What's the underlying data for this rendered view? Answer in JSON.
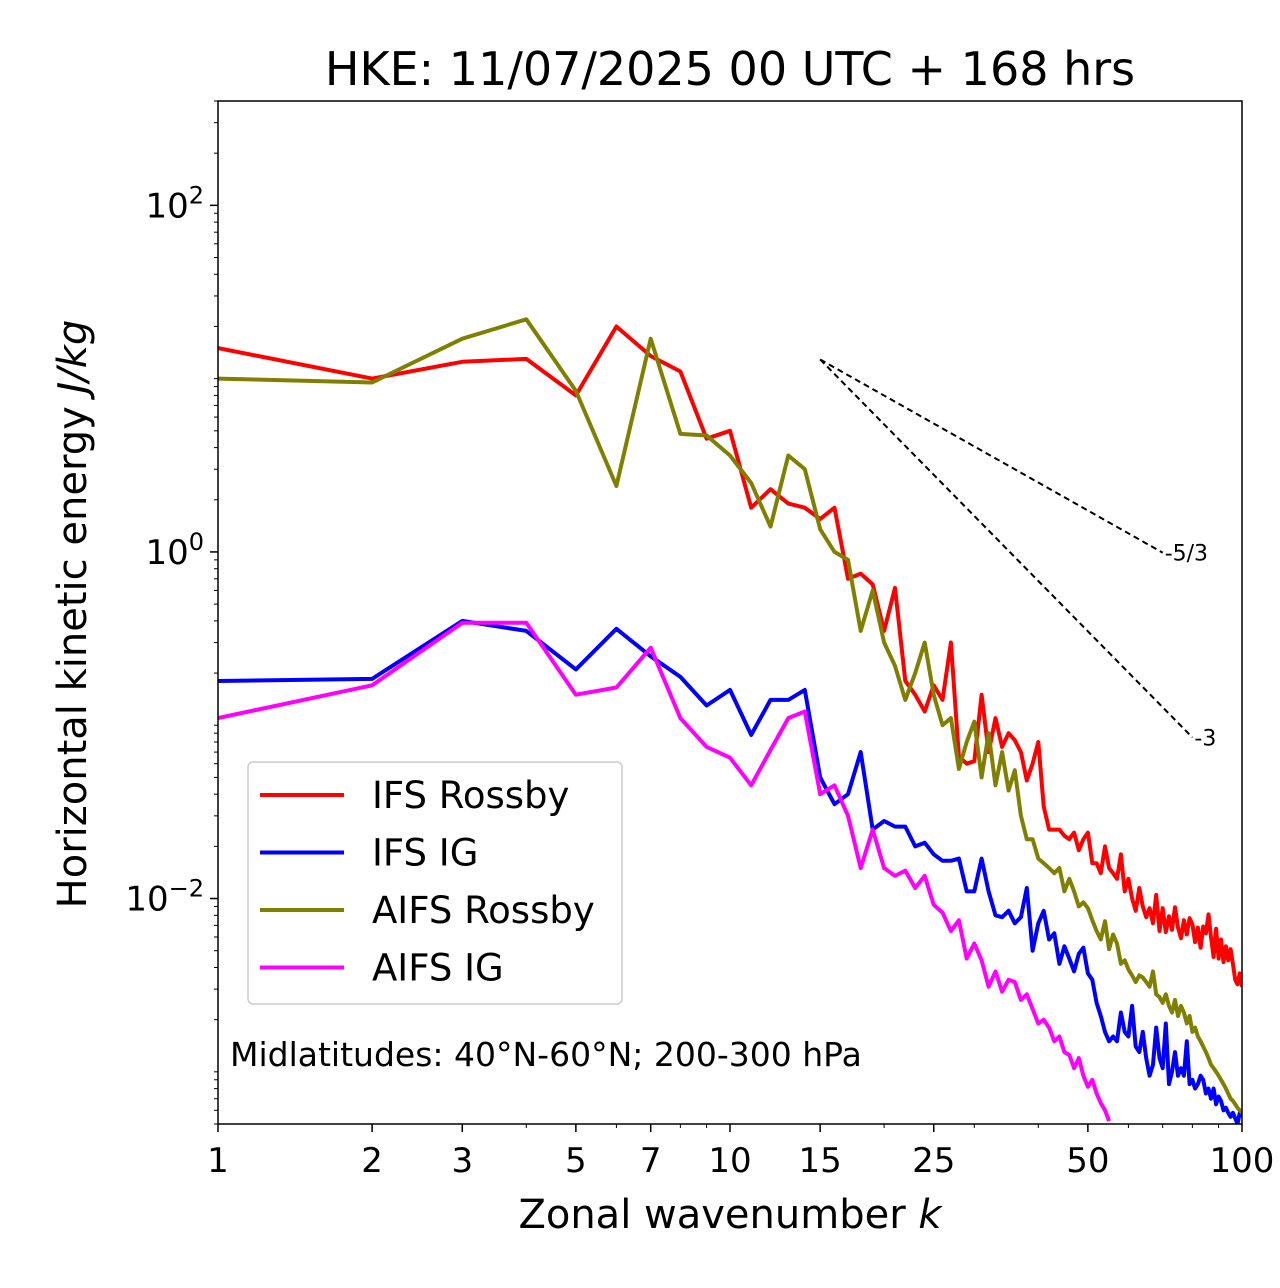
{
  "chart_data": {
    "type": "line",
    "title": "HKE: 11/07/2025 00 UTC + 168 hrs",
    "xlabel": "Zonal wavenumber",
    "xlabel_var": "k",
    "ylabel": "Horizontal kinetic energy",
    "ylabel_units": "J/kg",
    "xscale": "log",
    "yscale": "log",
    "xlim": [
      1,
      100
    ],
    "ylim": [
      0.0005,
      400
    ],
    "x_ticks": [
      1,
      2,
      3,
      5,
      7,
      10,
      15,
      25,
      50,
      100
    ],
    "x_tick_labels": [
      "1",
      "2",
      "3",
      "5",
      "7",
      "10",
      "15",
      "25",
      "50",
      "100"
    ],
    "y_ticks": [
      {
        "value": 100,
        "base": "10",
        "exp": "2"
      },
      {
        "value": 1,
        "base": "10",
        "exp": "0"
      },
      {
        "value": 0.01,
        "base": "10",
        "exp": "−2"
      }
    ],
    "annotation": "Midlatitudes: 40°N-60°N; 200-300 hPa",
    "legend_position": "lower-left",
    "reference_slopes": [
      {
        "label": "-5/3",
        "slope": -1.6667,
        "x_start": 15,
        "y_start": 12.9,
        "x_end": 70
      },
      {
        "label": "-3",
        "slope": -3,
        "x_start": 15,
        "y_start": 12.9,
        "x_end": 80
      }
    ],
    "series": [
      {
        "name": "IFS Rossby",
        "color": "#ff0000",
        "x": [
          1,
          2,
          3,
          4,
          5,
          6,
          7,
          8,
          9,
          10,
          11,
          12,
          13,
          14,
          15,
          16,
          17,
          18,
          19,
          20,
          21,
          22,
          23,
          24,
          25,
          26,
          27,
          28,
          29,
          30,
          31,
          32,
          33,
          34,
          35,
          36,
          37,
          38,
          39,
          40,
          41,
          42,
          43,
          44,
          45,
          46,
          47,
          48,
          49,
          50,
          51,
          52,
          53,
          54,
          55,
          56,
          57,
          58,
          59,
          60,
          61,
          62,
          63,
          64,
          65,
          66,
          67,
          68,
          69,
          70,
          71,
          72,
          73,
          74,
          75,
          76,
          77,
          78,
          79,
          80,
          81,
          82,
          83,
          84,
          85,
          86,
          87,
          88,
          89,
          90,
          91,
          92,
          93,
          94,
          95,
          96,
          97,
          98,
          99,
          100
        ],
        "y": [
          15,
          10,
          12.5,
          13,
          8,
          20,
          13.5,
          11,
          4.5,
          5,
          1.8,
          2.3,
          1.9,
          1.8,
          1.55,
          1.8,
          0.7,
          0.75,
          0.65,
          0.35,
          0.62,
          0.18,
          0.15,
          0.12,
          0.17,
          0.14,
          0.3,
          0.066,
          0.06,
          0.062,
          0.15,
          0.07,
          0.11,
          0.075,
          0.09,
          0.082,
          0.07,
          0.048,
          0.06,
          0.08,
          0.034,
          0.025,
          0.025,
          0.025,
          0.023,
          0.022,
          0.024,
          0.019,
          0.022,
          0.024,
          0.016,
          0.016,
          0.014,
          0.02,
          0.015,
          0.014,
          0.013,
          0.018,
          0.011,
          0.013,
          0.01,
          0.0085,
          0.0115,
          0.009,
          0.0078,
          0.0088,
          0.0072,
          0.0105,
          0.0065,
          0.0088,
          0.0064,
          0.0079,
          0.0066,
          0.0089,
          0.0068,
          0.0059,
          0.0075,
          0.0062,
          0.0077,
          0.0071,
          0.0056,
          0.0068,
          0.0052,
          0.0069,
          0.0063,
          0.0081,
          0.006,
          0.0046,
          0.0067,
          0.0045,
          0.0058,
          0.0043,
          0.0053,
          0.0044,
          0.0051,
          0.0042,
          0.0034,
          0.0032,
          0.0037,
          0.0031
        ]
      },
      {
        "name": "IFS IG",
        "color": "#0000ff",
        "x": [
          1,
          2,
          3,
          4,
          5,
          6,
          7,
          8,
          9,
          10,
          11,
          12,
          13,
          14,
          15,
          16,
          17,
          18,
          19,
          20,
          21,
          22,
          23,
          24,
          25,
          26,
          27,
          28,
          29,
          30,
          31,
          32,
          33,
          34,
          35,
          36,
          37,
          38,
          39,
          40,
          41,
          42,
          43,
          44,
          45,
          46,
          47,
          48,
          49,
          50,
          51,
          52,
          53,
          54,
          55,
          56,
          57,
          58,
          59,
          60,
          61,
          62,
          63,
          64,
          65,
          66,
          67,
          68,
          69,
          70,
          71,
          72,
          73,
          74,
          75,
          76,
          77,
          78,
          79,
          80,
          81,
          82,
          83,
          84,
          85,
          86,
          87,
          88,
          89,
          90,
          91,
          92,
          93,
          94,
          95,
          96,
          97,
          98,
          99,
          100
        ],
        "y": [
          0.18,
          0.185,
          0.4,
          0.35,
          0.21,
          0.36,
          0.25,
          0.19,
          0.13,
          0.16,
          0.088,
          0.14,
          0.14,
          0.16,
          0.05,
          0.035,
          0.04,
          0.07,
          0.025,
          0.028,
          0.026,
          0.026,
          0.02,
          0.021,
          0.018,
          0.0165,
          0.0165,
          0.017,
          0.011,
          0.011,
          0.017,
          0.011,
          0.008,
          0.0078,
          0.0085,
          0.0072,
          0.0078,
          0.0115,
          0.005,
          0.0072,
          0.0085,
          0.0058,
          0.0063,
          0.0042,
          0.0053,
          0.0045,
          0.0038,
          0.0048,
          0.0052,
          0.0037,
          0.0034,
          0.0025,
          0.0021,
          0.0017,
          0.0015,
          0.0016,
          0.0015,
          0.0022,
          0.0017,
          0.0016,
          0.0024,
          0.0014,
          0.0013,
          0.0017,
          0.0012,
          0.00095,
          0.0011,
          0.0018,
          0.0012,
          0.00105,
          0.0019,
          0.00085,
          0.001,
          0.0013,
          0.00095,
          0.00105,
          0.00095,
          0.0015,
          0.00085,
          0.0009,
          0.0008,
          0.00085,
          0.00095,
          0.0009,
          0.00075,
          0.0008,
          0.0007,
          0.0008,
          0.00065,
          0.00072,
          0.00068,
          0.0006,
          0.00062,
          0.00058,
          0.00055,
          0.00058,
          0.00054,
          0.0005,
          0.00058,
          0.00055
        ]
      },
      {
        "name": "AIFS Rossby",
        "color": "#808000",
        "x": [
          1,
          2,
          3,
          4,
          5,
          6,
          7,
          8,
          9,
          10,
          11,
          12,
          13,
          14,
          15,
          16,
          17,
          18,
          19,
          20,
          21,
          22,
          23,
          24,
          25,
          26,
          27,
          28,
          29,
          30,
          31,
          32,
          33,
          34,
          35,
          36,
          37,
          38,
          39,
          40,
          41,
          42,
          43,
          44,
          45,
          46,
          47,
          48,
          49,
          50,
          51,
          52,
          53,
          54,
          55,
          56,
          57,
          58,
          59,
          60,
          61,
          62,
          63,
          64,
          65,
          66,
          67,
          68,
          69,
          70,
          71,
          72,
          73,
          74,
          75,
          76,
          77,
          78,
          79,
          80,
          81,
          82,
          83,
          84,
          85,
          86,
          87,
          88,
          89,
          90,
          91,
          92,
          93,
          94,
          95,
          96,
          97,
          98,
          99,
          100
        ],
        "y": [
          10,
          9.5,
          17,
          22,
          8.5,
          2.4,
          17,
          4.8,
          4.7,
          3.6,
          2.5,
          1.4,
          3.6,
          3,
          1.35,
          1,
          0.9,
          0.35,
          0.6,
          0.3,
          0.22,
          0.14,
          0.2,
          0.3,
          0.15,
          0.1,
          0.11,
          0.056,
          0.08,
          0.105,
          0.05,
          0.09,
          0.045,
          0.07,
          0.042,
          0.055,
          0.03,
          0.022,
          0.022,
          0.017,
          0.016,
          0.015,
          0.014,
          0.015,
          0.011,
          0.013,
          0.011,
          0.009,
          0.0095,
          0.0088,
          0.0075,
          0.0065,
          0.0058,
          0.0074,
          0.0051,
          0.0062,
          0.0055,
          0.0042,
          0.0044,
          0.0039,
          0.0036,
          0.0033,
          0.0036,
          0.0035,
          0.0033,
          0.0031,
          0.0038,
          0.0028,
          0.0027,
          0.0025,
          0.0028,
          0.0024,
          0.0022,
          0.0026,
          0.0021,
          0.0024,
          0.0022,
          0.0019,
          0.0021,
          0.0017,
          0.0018,
          0.0016,
          0.0015,
          0.0014,
          0.0013,
          0.0012,
          0.0011,
          0.00105,
          0.001,
          0.00095,
          0.0009,
          0.00085,
          0.0008,
          0.00075,
          0.0007,
          0.00068,
          0.00065,
          0.00062,
          0.0006,
          0.00058
        ]
      },
      {
        "name": "AIFS IG",
        "color": "#ff00ff",
        "x": [
          1,
          2,
          3,
          4,
          5,
          6,
          7,
          8,
          9,
          10,
          11,
          12,
          13,
          14,
          15,
          16,
          17,
          18,
          19,
          20,
          21,
          22,
          23,
          24,
          25,
          26,
          27,
          28,
          29,
          30,
          31,
          32,
          33,
          34,
          35,
          36,
          37,
          38,
          39,
          40,
          41,
          42,
          43,
          44,
          45,
          46,
          47,
          48,
          49,
          50,
          51,
          52,
          53,
          54,
          55
        ],
        "y": [
          0.11,
          0.17,
          0.39,
          0.39,
          0.15,
          0.165,
          0.28,
          0.11,
          0.075,
          0.065,
          0.045,
          0.072,
          0.11,
          0.12,
          0.04,
          0.045,
          0.03,
          0.015,
          0.025,
          0.015,
          0.0135,
          0.0145,
          0.0115,
          0.0135,
          0.0092,
          0.0083,
          0.0065,
          0.0075,
          0.0045,
          0.0055,
          0.0044,
          0.0031,
          0.0038,
          0.0029,
          0.0034,
          0.0033,
          0.0026,
          0.0028,
          0.0023,
          0.0019,
          0.002,
          0.0018,
          0.0015,
          0.0016,
          0.0013,
          0.00125,
          0.00105,
          0.0012,
          0.00095,
          0.00082,
          0.0009,
          0.00075,
          0.00066,
          0.0006,
          0.00052
        ]
      }
    ]
  }
}
